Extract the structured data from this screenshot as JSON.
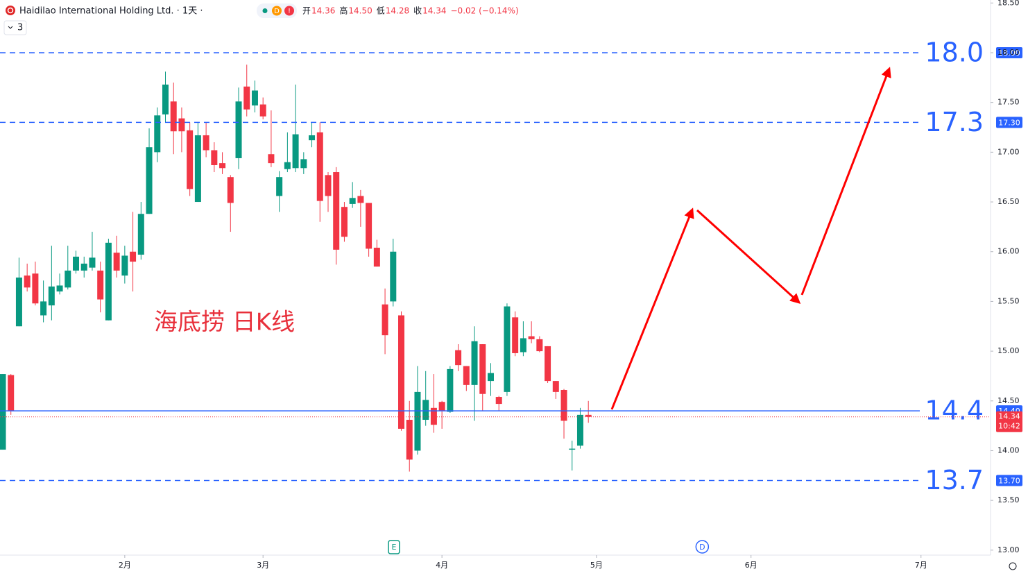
{
  "chart_data": {
    "type": "candlestick",
    "title": "Haidilao International Holding Ltd. · 1天 ·",
    "header": {
      "badges": [
        "D",
        "!"
      ],
      "open_label": "开",
      "open": "14.36",
      "high_label": "高",
      "high": "14.50",
      "low_label": "低",
      "low": "14.28",
      "close_label": "收",
      "close": "14.34",
      "change": "−0.02 (−0.14%)",
      "indicators": "3"
    },
    "annotation": "海底捞 日K线",
    "up_color": "#089981",
    "down_color": "#f23645",
    "level_color": "#2962ff",
    "open": [
      14.01,
      14.76,
      15.25,
      15.76,
      15.78,
      15.36,
      15.46,
      15.6,
      15.64,
      15.81,
      15.81,
      15.84,
      15.81,
      15.31,
      15.99,
      15.76,
      16.0,
      15.97,
      16.38,
      17.0,
      17.38,
      17.51,
      17.34,
      17.22,
      16.5,
      17.17,
      17.02,
      16.89,
      16.75,
      16.94,
      17.66,
      17.47,
      17.48,
      16.98,
      16.56,
      16.83,
      16.84,
      16.84,
      17.12,
      17.2,
      16.77,
      16.8,
      16.45,
      16.48,
      16.56,
      16.49,
      16.04,
      15.47,
      15.5,
      15.36,
      14.31,
      14.0,
      14.31,
      14.43,
      14.49,
      14.39,
      15.01,
      14.85,
      14.66,
      15.07,
      14.7,
      14.54,
      14.59,
      15.34,
      14.99,
      15.15,
      15.12,
      15.05,
      14.7,
      14.61,
      14.01,
      14.05,
      14.36
    ],
    "high": [
      14.77,
      14.77,
      15.94,
      15.88,
      15.9,
      15.71,
      16.06,
      15.78,
      16.06,
      16.01,
      15.95,
      16.2,
      15.9,
      16.13,
      16.16,
      16.06,
      16.4,
      16.5,
      17.24,
      17.45,
      17.81,
      17.7,
      17.45,
      17.3,
      17.3,
      17.3,
      17.1,
      17.0,
      16.77,
      17.65,
      17.88,
      17.72,
      17.55,
      17.42,
      16.81,
      17.2,
      17.68,
      17.0,
      17.3,
      17.3,
      16.8,
      16.85,
      16.5,
      16.7,
      16.62,
      16.49,
      16.12,
      15.63,
      16.13,
      15.4,
      14.5,
      14.85,
      14.8,
      14.77,
      14.5,
      14.85,
      15.07,
      14.85,
      15.25,
      15.07,
      14.88,
      14.55,
      15.48,
      15.4,
      15.3,
      15.3,
      15.15,
      15.05,
      14.7,
      14.62,
      14.1,
      14.43,
      14.5
    ],
    "low": [
      14.01,
      14.36,
      15.25,
      15.6,
      15.46,
      15.29,
      15.31,
      15.57,
      15.62,
      15.78,
      15.74,
      15.81,
      15.39,
      15.31,
      15.74,
      15.68,
      15.6,
      15.92,
      16.38,
      16.9,
      17.3,
      16.98,
      17.0,
      16.56,
      16.5,
      16.95,
      16.8,
      16.78,
      16.2,
      16.83,
      17.36,
      17.4,
      17.33,
      16.85,
      16.4,
      16.8,
      16.8,
      16.78,
      17.05,
      16.3,
      16.4,
      15.87,
      16.1,
      16.44,
      16.25,
      15.95,
      15.85,
      14.97,
      15.45,
      14.2,
      13.79,
      13.96,
      14.25,
      14.18,
      14.22,
      14.38,
      14.8,
      14.6,
      14.3,
      14.4,
      14.55,
      14.4,
      14.55,
      14.95,
      14.95,
      15.08,
      14.99,
      14.68,
      14.52,
      14.12,
      13.8,
      14.02,
      14.28
    ],
    "close": [
      14.77,
      14.4,
      15.74,
      15.64,
      15.48,
      15.5,
      15.65,
      15.66,
      15.81,
      15.95,
      15.88,
      15.94,
      15.52,
      16.09,
      15.81,
      15.96,
      15.9,
      16.38,
      17.05,
      17.37,
      17.68,
      17.21,
      17.21,
      16.63,
      17.17,
      17.02,
      16.87,
      16.84,
      16.49,
      17.51,
      17.43,
      17.62,
      17.36,
      16.89,
      16.75,
      16.9,
      17.18,
      16.93,
      17.17,
      16.51,
      16.56,
      16.02,
      16.15,
      16.54,
      16.49,
      16.03,
      15.85,
      15.16,
      16.0,
      14.22,
      13.91,
      14.59,
      14.51,
      14.26,
      14.4,
      14.82,
      14.86,
      14.66,
      15.1,
      14.57,
      14.78,
      14.47,
      15.45,
      14.98,
      15.13,
      15.12,
      15.0,
      14.7,
      14.59,
      14.3,
      14.02,
      14.36,
      14.34
    ],
    "xlim": [
      -0.34,
      121.45
    ],
    "xticks": [
      {
        "value": 15.0,
        "label": "2月"
      },
      {
        "value": 32.0,
        "label": "3月"
      },
      {
        "value": 54.0,
        "label": "4月"
      },
      {
        "value": 73.0,
        "label": "5月"
      },
      {
        "value": 92.0,
        "label": "6月"
      },
      {
        "value": 112.9,
        "label": "7月"
      }
    ],
    "ylim": [
      12.95,
      18.53
    ],
    "yticks": [
      {
        "value": 13,
        "label": "13.00"
      },
      {
        "value": 13.5,
        "label": "13.50"
      },
      {
        "value": 14,
        "label": "14.00"
      },
      {
        "value": 14.5,
        "label": "14.50"
      },
      {
        "value": 15,
        "label": "15.00"
      },
      {
        "value": 15.5,
        "label": "15.50"
      },
      {
        "value": 16,
        "label": "16.00"
      },
      {
        "value": 16.5,
        "label": "16.50"
      },
      {
        "value": 17,
        "label": "17.00"
      },
      {
        "value": 17.5,
        "label": "17.50"
      },
      {
        "value": 18,
        "label": "18.00"
      },
      {
        "value": 18.5,
        "label": "18.50"
      }
    ],
    "levels": [
      {
        "value": 18,
        "label": "18.0",
        "axis_label": "18.00",
        "style": "dashed"
      },
      {
        "value": 17.3,
        "label": "17.3",
        "axis_label": "17.30",
        "style": "dashed"
      },
      {
        "value": 14.4,
        "label": "14.4",
        "axis_label": "14.40",
        "style": "solid"
      },
      {
        "value": 13.7,
        "label": "13.7",
        "axis_label": "13.70",
        "style": "dashed"
      }
    ],
    "last_price": {
      "value": 14.34,
      "label": "14.34",
      "time": "10:42"
    },
    "events": [
      {
        "x": 48.1,
        "label": "E",
        "color": "#089981"
      },
      {
        "x": 86.0,
        "label": "D",
        "color": "#2962ff"
      }
    ]
  }
}
